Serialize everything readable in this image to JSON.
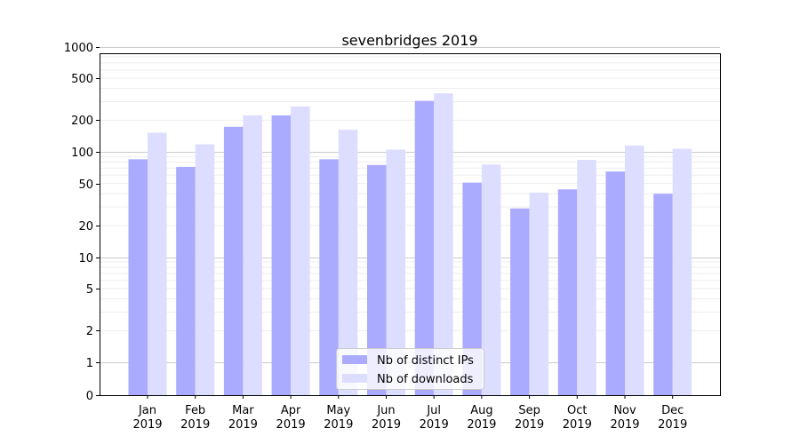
{
  "chart_data": {
    "type": "bar",
    "title": "sevenbridges 2019",
    "xlabel": "",
    "ylabel": "",
    "yscale": "symlog",
    "categories": [
      {
        "month": "Jan",
        "year": "2019"
      },
      {
        "month": "Feb",
        "year": "2019"
      },
      {
        "month": "Mar",
        "year": "2019"
      },
      {
        "month": "Apr",
        "year": "2019"
      },
      {
        "month": "May",
        "year": "2019"
      },
      {
        "month": "Jun",
        "year": "2019"
      },
      {
        "month": "Jul",
        "year": "2019"
      },
      {
        "month": "Aug",
        "year": "2019"
      },
      {
        "month": "Sep",
        "year": "2019"
      },
      {
        "month": "Oct",
        "year": "2019"
      },
      {
        "month": "Nov",
        "year": "2019"
      },
      {
        "month": "Dec",
        "year": "2019"
      }
    ],
    "series": [
      {
        "name": "Nb of distinct IPs",
        "color": "#aaaaff",
        "values": [
          85,
          72,
          173,
          222,
          85,
          75,
          305,
          51,
          29,
          44,
          65,
          40
        ]
      },
      {
        "name": "Nb of downloads",
        "color": "#ddddff",
        "values": [
          152,
          118,
          222,
          270,
          162,
          105,
          360,
          76,
          41,
          84,
          115,
          107
        ]
      }
    ],
    "yticks": [
      {
        "value": 0,
        "label": "0"
      },
      {
        "value": 1,
        "label": "1"
      },
      {
        "value": 2,
        "label": "2"
      },
      {
        "value": 5,
        "label": "5"
      },
      {
        "value": 10,
        "label": "10"
      },
      {
        "value": 20,
        "label": "20"
      },
      {
        "value": 50,
        "label": "50"
      },
      {
        "value": 100,
        "label": "100"
      },
      {
        "value": 200,
        "label": "200"
      },
      {
        "value": 500,
        "label": "500"
      },
      {
        "value": 1000,
        "label": "1000"
      }
    ],
    "ylim": [
      0,
      1400
    ],
    "grid": true,
    "legend_position": "bottom-center"
  }
}
